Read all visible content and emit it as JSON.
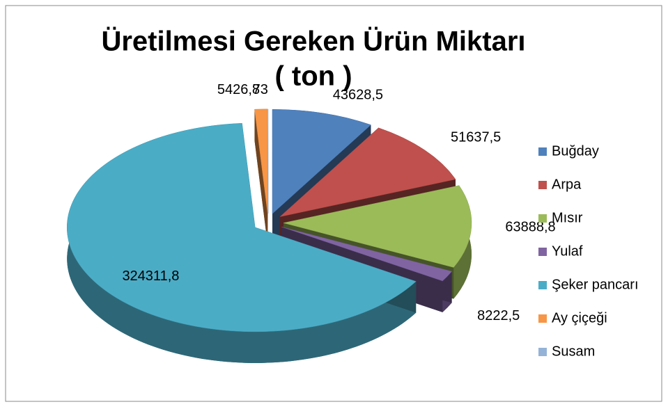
{
  "chart_data": {
    "type": "pie3d",
    "title": "Üretilmesi Gereken Ürün Miktarı",
    "subtitle": "( ton )",
    "categories": [
      "Buğday",
      "Arpa",
      "Mısır",
      "Yulaf",
      "Şeker pancarı",
      "Ay çiçeği",
      "Susam"
    ],
    "values": [
      43628.5,
      51637.5,
      63888.8,
      8222.5,
      324311.8,
      5426.8,
      73
    ],
    "value_labels": [
      "43628,5",
      "51637,5",
      "63888,8",
      "8222,5",
      "324311,8",
      "5426,8",
      "73"
    ],
    "colors": [
      "#4f81bd",
      "#c0504d",
      "#9bbb59",
      "#8064a2",
      "#4bacc6",
      "#f79646",
      "#95b3d7"
    ],
    "legend": "right"
  }
}
